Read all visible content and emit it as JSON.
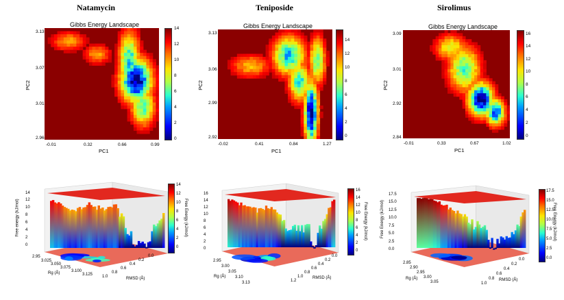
{
  "chart_data": [
    {
      "type": "heatmap",
      "header": "Natamycin",
      "title": "Gibbs Energy Landscape",
      "xlabel": "PC1",
      "ylabel": "PC2",
      "xticks": [
        "-0.01",
        "0.32",
        "0.66",
        "0.99"
      ],
      "yticks": [
        "3.13",
        "3.07",
        "3.01",
        "2.96"
      ],
      "xlim": [
        -0.01,
        0.99
      ],
      "ylim": [
        2.96,
        3.13
      ],
      "colorbar_ticks": [
        "14",
        "12",
        "10",
        "8",
        "6",
        "4",
        "2",
        "0"
      ],
      "colorbar_range": [
        0,
        14
      ],
      "basins": [
        {
          "x": 0.79,
          "y": 3.05,
          "sx": 0.09,
          "sy": 0.022,
          "depth": 14
        },
        {
          "x": 0.73,
          "y": 3.08,
          "sx": 0.06,
          "sy": 0.03,
          "depth": 9
        },
        {
          "x": 0.85,
          "y": 3.01,
          "sx": 0.07,
          "sy": 0.02,
          "depth": 8
        },
        {
          "x": 0.2,
          "y": 3.11,
          "sx": 0.1,
          "sy": 0.01,
          "depth": 4
        },
        {
          "x": 0.45,
          "y": 3.09,
          "sx": 0.08,
          "sy": 0.01,
          "depth": 4
        }
      ]
    },
    {
      "type": "heatmap",
      "header": "Teniposide",
      "title": "Gibbs Energy Landscape",
      "xlabel": "PC1",
      "ylabel": "PC2",
      "xticks": [
        "-0.02",
        "0.41",
        "0.84",
        "1.27"
      ],
      "yticks": [
        "3.13",
        "3.06",
        "2.99",
        "2.92"
      ],
      "xlim": [
        -0.02,
        1.27
      ],
      "ylim": [
        2.92,
        3.13
      ],
      "colorbar_ticks": [
        "14",
        "12",
        "10",
        "8",
        "6",
        "4",
        "2",
        "0"
      ],
      "colorbar_range": [
        0,
        16
      ],
      "basins": [
        {
          "x": 1.03,
          "y": 2.97,
          "sx": 0.05,
          "sy": 0.04,
          "depth": 16
        },
        {
          "x": 0.78,
          "y": 3.08,
          "sx": 0.12,
          "sy": 0.025,
          "depth": 11
        },
        {
          "x": 0.9,
          "y": 3.03,
          "sx": 0.08,
          "sy": 0.025,
          "depth": 10
        },
        {
          "x": 1.1,
          "y": 3.07,
          "sx": 0.06,
          "sy": 0.03,
          "depth": 9
        },
        {
          "x": 0.35,
          "y": 3.06,
          "sx": 0.15,
          "sy": 0.015,
          "depth": 5
        }
      ]
    },
    {
      "type": "heatmap",
      "header": "Sirolimus",
      "title": "Gibbs Energy Landscape",
      "xlabel": "PC1",
      "ylabel": "PC2",
      "xticks": [
        "-0.01",
        "0.33",
        "0.67",
        "1.02"
      ],
      "yticks": [
        "3.09",
        "3.01",
        "2.92",
        "2.84"
      ],
      "xlim": [
        -0.01,
        1.02
      ],
      "ylim": [
        2.84,
        3.09
      ],
      "colorbar_ticks": [
        "16",
        "14",
        "12",
        "10",
        "8",
        "6",
        "4",
        "2",
        "0"
      ],
      "colorbar_range": [
        0,
        17
      ],
      "basins": [
        {
          "x": 0.74,
          "y": 2.93,
          "sx": 0.08,
          "sy": 0.025,
          "depth": 17
        },
        {
          "x": 0.88,
          "y": 2.9,
          "sx": 0.06,
          "sy": 0.02,
          "depth": 14
        },
        {
          "x": 0.58,
          "y": 3.0,
          "sx": 0.1,
          "sy": 0.035,
          "depth": 10
        },
        {
          "x": 0.45,
          "y": 3.05,
          "sx": 0.1,
          "sy": 0.02,
          "depth": 7
        }
      ]
    },
    {
      "type": "area",
      "title": "",
      "zlabel": "Free energy (kJ/mol)",
      "xlabel": "Rg (Å)",
      "ylabel": "RMSD (Å)",
      "zticks": [
        "14",
        "12",
        "10",
        "8",
        "6",
        "4",
        "2",
        "0"
      ],
      "rg_ticks": [
        "2.95",
        "3.025",
        "3.050",
        "3.075",
        "3.100",
        "3.125"
      ],
      "rmsd_ticks": [
        "0.0",
        "0.2",
        "0.4",
        "0.6",
        "0.8",
        "1.0"
      ],
      "colorbar_ticks": [
        "14",
        "12",
        "10",
        "8",
        "6",
        "4",
        "2",
        "0"
      ],
      "colorbar_label": "Free Energy (kJ/mol)"
    },
    {
      "type": "area",
      "title": "",
      "zlabel": "Free energy (kJ/mol)",
      "xlabel": "Rg (Å)",
      "ylabel": "RMSD (Å)",
      "zticks": [
        "16",
        "14",
        "12",
        "10",
        "8",
        "6",
        "4",
        "2",
        "0"
      ],
      "rg_ticks": [
        "2.95",
        "3.00",
        "3.05",
        "3.10",
        "3.13"
      ],
      "rmsd_ticks": [
        "0.0",
        "0.2",
        "0.4",
        "0.6",
        "0.8",
        "1.0",
        "1.2"
      ],
      "colorbar_ticks": [
        "16",
        "14",
        "12",
        "10",
        "8",
        "6",
        "4",
        "2",
        "0"
      ],
      "colorbar_label": "Free Energy (kJ/mol)"
    },
    {
      "type": "area",
      "title": "",
      "zlabel": "Free Energy (kJ/mol)",
      "xlabel": "Rg (Å)",
      "ylabel": "RMSD (Å)",
      "zticks": [
        "17.5",
        "15.0",
        "12.5",
        "10.0",
        "7.5",
        "5.0",
        "2.5",
        "0.0"
      ],
      "rg_ticks": [
        "2.85",
        "2.90",
        "2.95",
        "3.00",
        "3.05"
      ],
      "rmsd_ticks": [
        "0.0",
        "0.2",
        "0.4",
        "0.6",
        "0.8",
        "1.0"
      ],
      "colorbar_ticks": [
        "17.5",
        "15.0",
        "12.5",
        "10.0",
        "7.5",
        "5.0",
        "2.5",
        "0.0"
      ],
      "colorbar_label": "Free Energy (kJ/mol)"
    }
  ]
}
